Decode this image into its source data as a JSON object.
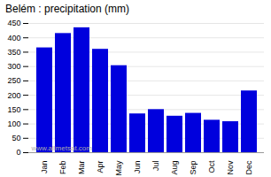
{
  "chart_data": {
    "type": "bar",
    "title": "Belém : precipitation (mm)",
    "categories": [
      "Jan",
      "Feb",
      "Mar",
      "Apr",
      "May",
      "Jun",
      "Jul",
      "Aug",
      "Sep",
      "Oct",
      "Nov",
      "Dec"
    ],
    "values": [
      365,
      415,
      435,
      360,
      303,
      135,
      150,
      127,
      137,
      113,
      108,
      215
    ],
    "color": "#0000dd",
    "ylim": [
      0,
      450
    ],
    "yticks": [
      0,
      50,
      100,
      150,
      200,
      250,
      300,
      350,
      400,
      450
    ],
    "grid": true,
    "annotations": [
      "www.allmetsat.com"
    ]
  }
}
